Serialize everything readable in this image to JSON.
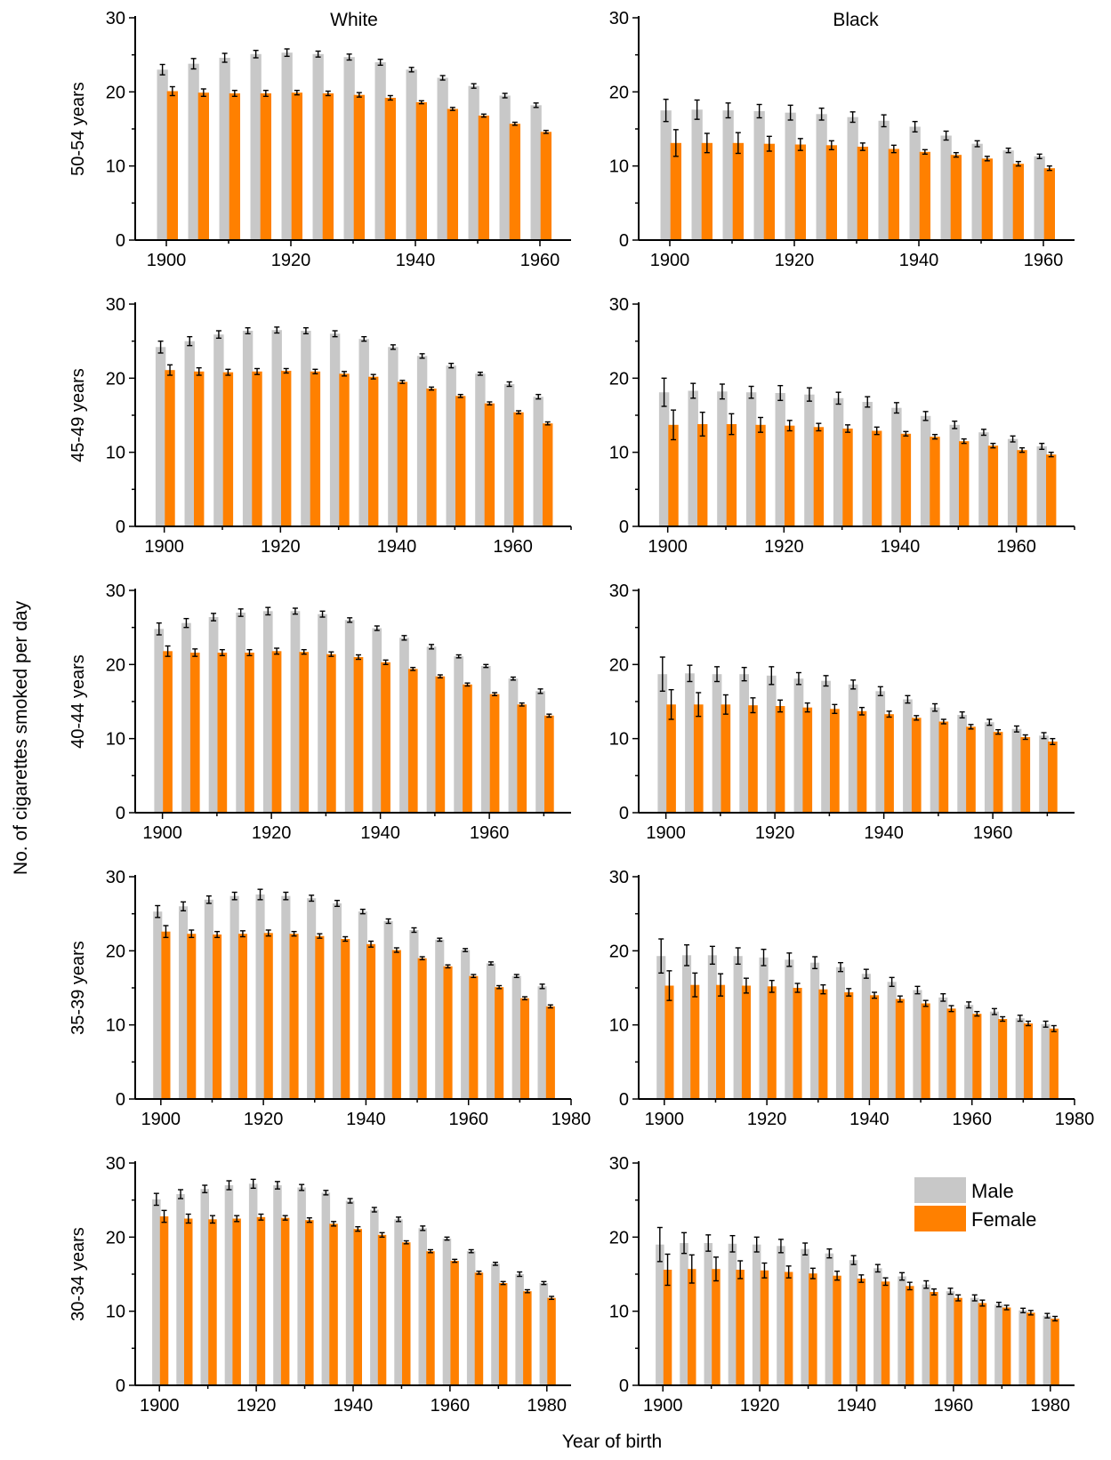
{
  "figure": {
    "ylabel": "No. of cigarettes smoked per day",
    "xlabel": "Year of birth",
    "column_titles": [
      "White",
      "Black"
    ],
    "row_labels": [
      "50-54 years",
      "45-49 years",
      "40-44 years",
      "35-39 years",
      "30-34 years"
    ],
    "legend": [
      {
        "name": "Male",
        "color": "#c8c8c8"
      },
      {
        "name": "Female",
        "color": "#ff8000"
      }
    ],
    "legend_position": "top-right of bottom-right panel"
  },
  "chart_data": [
    {
      "type": "bar",
      "race": "White",
      "age": "50-54 years",
      "ylim": [
        0,
        30
      ],
      "yticks": [
        0,
        10,
        20,
        30
      ],
      "xlim": [
        1895,
        1965
      ],
      "xticks": [
        1900,
        1920,
        1940,
        1960
      ],
      "x": [
        1900,
        1905,
        1910,
        1915,
        1920,
        1925,
        1930,
        1935,
        1940,
        1945,
        1950,
        1955,
        1960
      ],
      "series": [
        {
          "name": "Male",
          "values": [
            23.0,
            23.8,
            24.6,
            25.1,
            25.3,
            25.1,
            24.7,
            24.0,
            23.0,
            21.9,
            20.8,
            19.5,
            18.2
          ],
          "errors": [
            0.7,
            0.7,
            0.6,
            0.5,
            0.5,
            0.4,
            0.4,
            0.4,
            0.3,
            0.3,
            0.3,
            0.3,
            0.3
          ]
        },
        {
          "name": "Female",
          "values": [
            20.1,
            19.9,
            19.8,
            19.8,
            19.9,
            19.8,
            19.6,
            19.2,
            18.6,
            17.7,
            16.8,
            15.7,
            14.6
          ],
          "errors": [
            0.6,
            0.5,
            0.4,
            0.4,
            0.3,
            0.3,
            0.3,
            0.3,
            0.2,
            0.2,
            0.2,
            0.2,
            0.2
          ]
        }
      ]
    },
    {
      "type": "bar",
      "race": "Black",
      "age": "50-54 years",
      "ylim": [
        0,
        30
      ],
      "yticks": [
        0,
        10,
        20,
        30
      ],
      "xlim": [
        1895,
        1965
      ],
      "xticks": [
        1900,
        1920,
        1940,
        1960
      ],
      "x": [
        1900,
        1905,
        1910,
        1915,
        1920,
        1925,
        1930,
        1935,
        1940,
        1945,
        1950,
        1955,
        1960
      ],
      "series": [
        {
          "name": "Male",
          "values": [
            17.5,
            17.6,
            17.5,
            17.4,
            17.2,
            17.0,
            16.6,
            16.1,
            15.3,
            14.1,
            13.0,
            12.1,
            11.3
          ],
          "errors": [
            1.5,
            1.3,
            1.0,
            0.9,
            1.0,
            0.8,
            0.7,
            0.8,
            0.7,
            0.6,
            0.4,
            0.3,
            0.3
          ]
        },
        {
          "name": "Female",
          "values": [
            13.1,
            13.1,
            13.1,
            13.0,
            12.9,
            12.8,
            12.6,
            12.3,
            11.9,
            11.5,
            11.0,
            10.3,
            9.7
          ],
          "errors": [
            1.8,
            1.3,
            1.4,
            1.0,
            0.8,
            0.6,
            0.5,
            0.5,
            0.3,
            0.3,
            0.3,
            0.3,
            0.3
          ]
        }
      ]
    },
    {
      "type": "bar",
      "race": "White",
      "age": "45-49 years",
      "ylim": [
        0,
        30
      ],
      "yticks": [
        0,
        10,
        20,
        30
      ],
      "xlim": [
        1895,
        1970
      ],
      "xticks": [
        1900,
        1920,
        1940,
        1960
      ],
      "x": [
        1900,
        1905,
        1910,
        1915,
        1920,
        1925,
        1930,
        1935,
        1940,
        1945,
        1950,
        1955,
        1960,
        1965
      ],
      "series": [
        {
          "name": "Male",
          "values": [
            24.2,
            25.0,
            25.9,
            26.4,
            26.5,
            26.4,
            26.0,
            25.3,
            24.2,
            23.0,
            21.7,
            20.6,
            19.2,
            17.5
          ],
          "errors": [
            0.8,
            0.6,
            0.5,
            0.4,
            0.4,
            0.4,
            0.4,
            0.3,
            0.3,
            0.3,
            0.3,
            0.2,
            0.3,
            0.3
          ]
        },
        {
          "name": "Female",
          "values": [
            21.1,
            20.9,
            20.8,
            20.9,
            21.0,
            20.9,
            20.6,
            20.2,
            19.5,
            18.6,
            17.6,
            16.6,
            15.4,
            13.9
          ],
          "errors": [
            0.7,
            0.5,
            0.4,
            0.4,
            0.3,
            0.3,
            0.3,
            0.3,
            0.2,
            0.2,
            0.2,
            0.2,
            0.2,
            0.2
          ]
        }
      ]
    },
    {
      "type": "bar",
      "race": "Black",
      "age": "45-49 years",
      "ylim": [
        0,
        30
      ],
      "yticks": [
        0,
        10,
        20,
        30
      ],
      "xlim": [
        1895,
        1970
      ],
      "xticks": [
        1900,
        1920,
        1940,
        1960
      ],
      "x": [
        1900,
        1905,
        1910,
        1915,
        1920,
        1925,
        1930,
        1935,
        1940,
        1945,
        1950,
        1955,
        1960,
        1965
      ],
      "series": [
        {
          "name": "Male",
          "values": [
            18.1,
            18.3,
            18.2,
            18.1,
            18.0,
            17.8,
            17.3,
            16.8,
            16.0,
            14.9,
            13.7,
            12.7,
            11.8,
            10.8
          ],
          "errors": [
            1.9,
            1.0,
            1.0,
            0.8,
            1.0,
            0.9,
            0.8,
            0.7,
            0.7,
            0.6,
            0.5,
            0.4,
            0.4,
            0.4
          ]
        },
        {
          "name": "Female",
          "values": [
            13.7,
            13.8,
            13.8,
            13.7,
            13.6,
            13.4,
            13.2,
            12.9,
            12.5,
            12.1,
            11.5,
            10.9,
            10.3,
            9.7
          ],
          "errors": [
            2.0,
            1.6,
            1.4,
            1.0,
            0.7,
            0.5,
            0.5,
            0.5,
            0.3,
            0.3,
            0.3,
            0.3,
            0.3,
            0.3
          ]
        }
      ]
    },
    {
      "type": "bar",
      "race": "White",
      "age": "40-44 years",
      "ylim": [
        0,
        30
      ],
      "yticks": [
        0,
        10,
        20,
        30
      ],
      "xlim": [
        1895,
        1975
      ],
      "xticks": [
        1900,
        1920,
        1940,
        1960
      ],
      "x": [
        1900,
        1905,
        1910,
        1915,
        1920,
        1925,
        1930,
        1935,
        1940,
        1945,
        1950,
        1955,
        1960,
        1965,
        1970
      ],
      "series": [
        {
          "name": "Male",
          "values": [
            24.8,
            25.6,
            26.4,
            27.0,
            27.2,
            27.2,
            26.8,
            26.0,
            24.9,
            23.6,
            22.4,
            21.1,
            19.8,
            18.1,
            16.4
          ],
          "errors": [
            0.8,
            0.6,
            0.5,
            0.5,
            0.5,
            0.4,
            0.4,
            0.3,
            0.3,
            0.3,
            0.3,
            0.2,
            0.2,
            0.2,
            0.3
          ]
        },
        {
          "name": "Female",
          "values": [
            21.8,
            21.6,
            21.6,
            21.6,
            21.8,
            21.7,
            21.4,
            21.0,
            20.3,
            19.4,
            18.4,
            17.3,
            16.0,
            14.6,
            13.1
          ],
          "errors": [
            0.7,
            0.5,
            0.4,
            0.4,
            0.4,
            0.3,
            0.3,
            0.3,
            0.3,
            0.2,
            0.2,
            0.2,
            0.2,
            0.2,
            0.2
          ]
        }
      ]
    },
    {
      "type": "bar",
      "race": "Black",
      "age": "40-44 years",
      "ylim": [
        0,
        30
      ],
      "yticks": [
        0,
        10,
        20,
        30
      ],
      "xlim": [
        1895,
        1975
      ],
      "xticks": [
        1900,
        1920,
        1940,
        1960
      ],
      "x": [
        1900,
        1905,
        1910,
        1915,
        1920,
        1925,
        1930,
        1935,
        1940,
        1945,
        1950,
        1955,
        1960,
        1965,
        1970
      ],
      "series": [
        {
          "name": "Male",
          "values": [
            18.7,
            18.8,
            18.7,
            18.7,
            18.5,
            18.1,
            17.8,
            17.3,
            16.4,
            15.3,
            14.2,
            13.2,
            12.2,
            11.3,
            10.4
          ],
          "errors": [
            2.3,
            1.1,
            1.0,
            0.9,
            1.2,
            0.8,
            0.7,
            0.6,
            0.6,
            0.5,
            0.5,
            0.4,
            0.4,
            0.4,
            0.4
          ]
        },
        {
          "name": "Female",
          "values": [
            14.6,
            14.6,
            14.6,
            14.5,
            14.4,
            14.2,
            14.0,
            13.7,
            13.3,
            12.8,
            12.3,
            11.6,
            10.9,
            10.2,
            9.6
          ],
          "errors": [
            2.0,
            1.6,
            1.3,
            1.0,
            0.8,
            0.6,
            0.6,
            0.5,
            0.4,
            0.3,
            0.3,
            0.3,
            0.3,
            0.3,
            0.4
          ]
        }
      ]
    },
    {
      "type": "bar",
      "race": "White",
      "age": "35-39 years",
      "ylim": [
        0,
        30
      ],
      "yticks": [
        0,
        10,
        20,
        30
      ],
      "xlim": [
        1895,
        1980
      ],
      "xticks": [
        1900,
        1920,
        1940,
        1960,
        1980
      ],
      "x": [
        1900,
        1905,
        1910,
        1915,
        1920,
        1925,
        1930,
        1935,
        1940,
        1945,
        1950,
        1955,
        1960,
        1965,
        1970,
        1975
      ],
      "series": [
        {
          "name": "Male",
          "values": [
            25.3,
            26.0,
            26.9,
            27.4,
            27.6,
            27.4,
            27.1,
            26.4,
            25.3,
            24.0,
            22.8,
            21.5,
            20.1,
            18.3,
            16.6,
            15.2
          ],
          "errors": [
            0.8,
            0.6,
            0.5,
            0.5,
            0.7,
            0.5,
            0.4,
            0.4,
            0.3,
            0.3,
            0.3,
            0.2,
            0.2,
            0.2,
            0.2,
            0.3
          ]
        },
        {
          "name": "Female",
          "values": [
            22.6,
            22.3,
            22.2,
            22.3,
            22.4,
            22.3,
            22.0,
            21.6,
            20.9,
            20.1,
            19.0,
            17.9,
            16.6,
            15.1,
            13.6,
            12.5
          ],
          "errors": [
            0.8,
            0.5,
            0.4,
            0.4,
            0.4,
            0.3,
            0.3,
            0.3,
            0.4,
            0.3,
            0.2,
            0.2,
            0.2,
            0.2,
            0.2,
            0.2
          ]
        }
      ]
    },
    {
      "type": "bar",
      "race": "Black",
      "age": "35-39 years",
      "ylim": [
        0,
        30
      ],
      "yticks": [
        0,
        10,
        20,
        30
      ],
      "xlim": [
        1895,
        1980
      ],
      "xticks": [
        1900,
        1920,
        1940,
        1960,
        1980
      ],
      "x": [
        1900,
        1905,
        1910,
        1915,
        1920,
        1925,
        1930,
        1935,
        1940,
        1945,
        1950,
        1955,
        1960,
        1965,
        1970,
        1975
      ],
      "series": [
        {
          "name": "Male",
          "values": [
            19.3,
            19.4,
            19.4,
            19.3,
            19.1,
            18.8,
            18.4,
            17.8,
            16.9,
            15.8,
            14.7,
            13.7,
            12.7,
            11.8,
            10.9,
            10.1
          ],
          "errors": [
            2.3,
            1.4,
            1.2,
            1.1,
            1.1,
            0.9,
            0.8,
            0.6,
            0.6,
            0.6,
            0.5,
            0.5,
            0.4,
            0.4,
            0.4,
            0.4
          ]
        },
        {
          "name": "Female",
          "values": [
            15.3,
            15.4,
            15.4,
            15.3,
            15.2,
            15.0,
            14.8,
            14.4,
            14.0,
            13.5,
            12.9,
            12.2,
            11.5,
            10.8,
            10.2,
            9.5
          ],
          "errors": [
            2.0,
            1.6,
            1.5,
            1.0,
            0.8,
            0.6,
            0.6,
            0.5,
            0.4,
            0.4,
            0.4,
            0.4,
            0.3,
            0.3,
            0.3,
            0.4
          ]
        }
      ]
    },
    {
      "type": "bar",
      "race": "White",
      "age": "30-34 years",
      "ylim": [
        0,
        30
      ],
      "yticks": [
        0,
        10,
        20,
        30
      ],
      "xlim": [
        1895,
        1985
      ],
      "xticks": [
        1900,
        1920,
        1940,
        1960,
        1980
      ],
      "x": [
        1900,
        1905,
        1910,
        1915,
        1920,
        1925,
        1930,
        1935,
        1940,
        1945,
        1950,
        1955,
        1960,
        1965,
        1970,
        1975,
        1980
      ],
      "series": [
        {
          "name": "Male",
          "values": [
            25.1,
            25.8,
            26.5,
            27.0,
            27.2,
            27.0,
            26.7,
            26.0,
            24.9,
            23.7,
            22.4,
            21.2,
            19.8,
            18.1,
            16.4,
            15.0,
            13.8
          ],
          "errors": [
            0.8,
            0.6,
            0.5,
            0.6,
            0.6,
            0.5,
            0.4,
            0.3,
            0.3,
            0.3,
            0.3,
            0.3,
            0.2,
            0.2,
            0.2,
            0.3,
            0.2
          ]
        },
        {
          "name": "Female",
          "values": [
            22.8,
            22.5,
            22.4,
            22.5,
            22.7,
            22.6,
            22.3,
            21.8,
            21.1,
            20.3,
            19.3,
            18.1,
            16.8,
            15.2,
            13.8,
            12.7,
            11.8
          ],
          "errors": [
            0.8,
            0.6,
            0.5,
            0.4,
            0.4,
            0.3,
            0.3,
            0.3,
            0.3,
            0.3,
            0.2,
            0.2,
            0.2,
            0.2,
            0.2,
            0.2,
            0.2
          ]
        }
      ]
    },
    {
      "type": "bar",
      "race": "Black",
      "age": "30-34 years",
      "ylim": [
        0,
        30
      ],
      "yticks": [
        0,
        10,
        20,
        30
      ],
      "xlim": [
        1895,
        1985
      ],
      "xticks": [
        1900,
        1920,
        1940,
        1960,
        1980
      ],
      "x": [
        1900,
        1905,
        1910,
        1915,
        1920,
        1925,
        1930,
        1935,
        1940,
        1945,
        1950,
        1955,
        1960,
        1965,
        1970,
        1975,
        1980
      ],
      "series": [
        {
          "name": "Male",
          "values": [
            19.0,
            19.2,
            19.2,
            19.1,
            19.0,
            18.8,
            18.4,
            17.8,
            16.9,
            15.8,
            14.7,
            13.6,
            12.7,
            11.8,
            10.9,
            10.1,
            9.4
          ],
          "errors": [
            2.3,
            1.4,
            1.1,
            1.1,
            1.0,
            0.9,
            0.8,
            0.6,
            0.6,
            0.5,
            0.5,
            0.5,
            0.4,
            0.4,
            0.3,
            0.3,
            0.3
          ]
        },
        {
          "name": "Female",
          "values": [
            15.6,
            15.7,
            15.7,
            15.6,
            15.5,
            15.3,
            15.1,
            14.8,
            14.4,
            14.0,
            13.4,
            12.6,
            11.8,
            11.1,
            10.5,
            9.8,
            9.0
          ],
          "errors": [
            2.1,
            1.9,
            1.6,
            1.2,
            1.0,
            0.8,
            0.7,
            0.6,
            0.5,
            0.5,
            0.5,
            0.4,
            0.4,
            0.4,
            0.3,
            0.3,
            0.3
          ]
        }
      ]
    }
  ]
}
